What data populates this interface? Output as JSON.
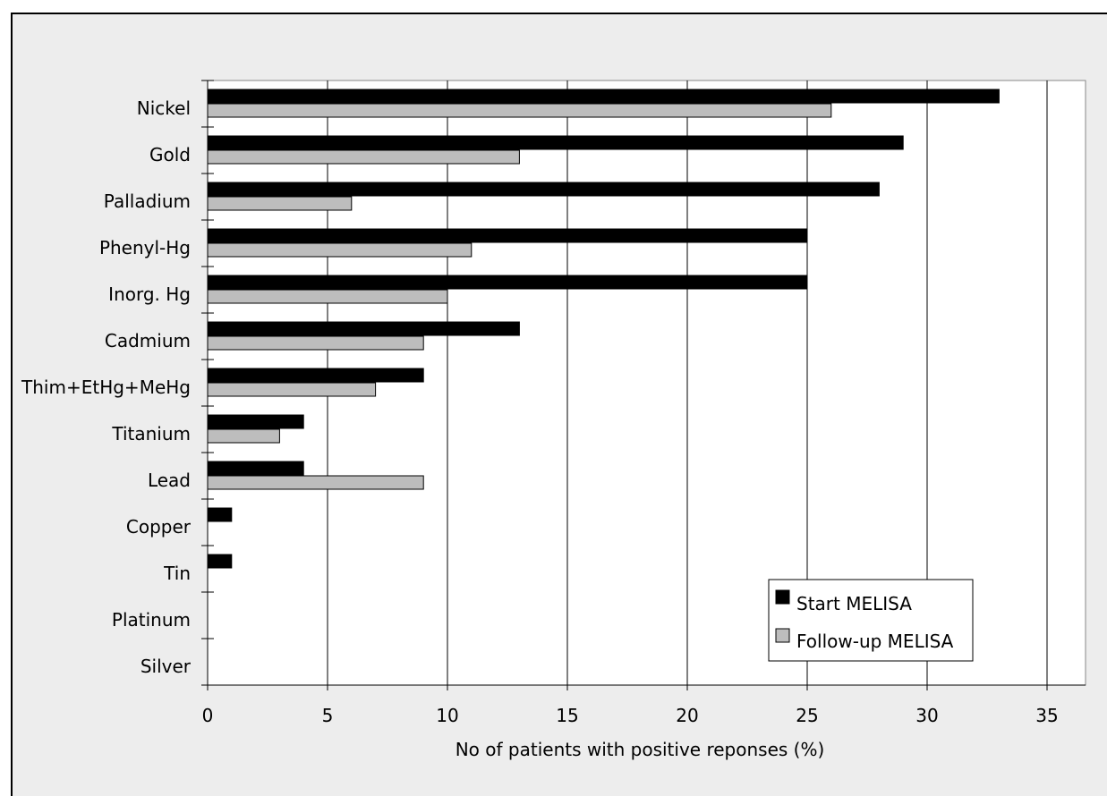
{
  "chart_data": {
    "type": "bar",
    "orientation": "horizontal",
    "title": "",
    "xlabel": "No of patients with positive reponses (%)",
    "ylabel": "",
    "xlim": [
      0,
      35
    ],
    "xticks": [
      0,
      5,
      10,
      15,
      20,
      25,
      30,
      35
    ],
    "grid": true,
    "legend_position": "bottom-right",
    "categories": [
      "Nickel",
      "Gold",
      "Palladium",
      "Phenyl-Hg",
      "Inorg. Hg",
      "Cadmium",
      "Thim+EtHg+MeHg",
      "Titanium",
      "Lead",
      "Copper",
      "Tin",
      "Platinum",
      "Silver"
    ],
    "series": [
      {
        "name": "Start MELISA",
        "color": "#000000",
        "values": [
          33,
          29,
          28,
          25,
          25,
          13,
          9,
          4,
          4,
          1,
          1,
          0,
          0
        ]
      },
      {
        "name": "Follow-up MELISA",
        "color": "#bdbdbd",
        "values": [
          26,
          13,
          6,
          11,
          10,
          9,
          7,
          3,
          9,
          0,
          0,
          0,
          0
        ]
      }
    ]
  }
}
